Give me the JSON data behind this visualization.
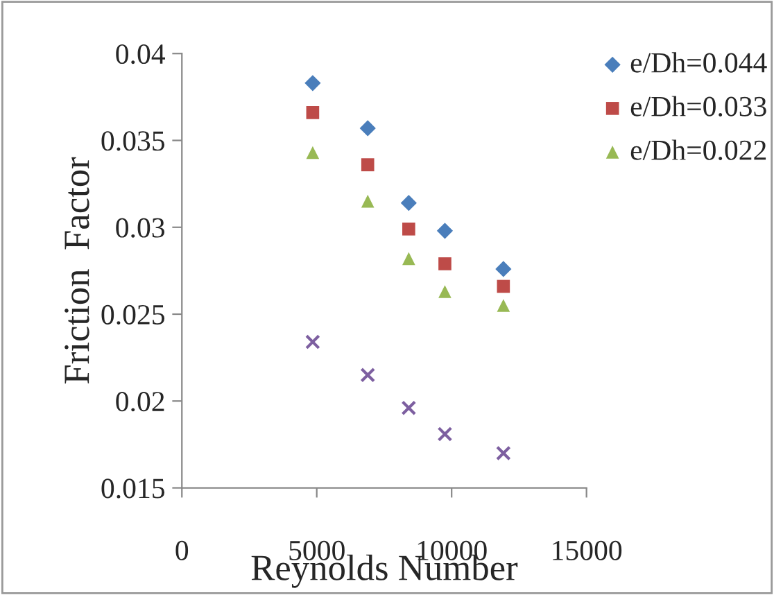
{
  "chart_data": {
    "type": "scatter",
    "xlabel": "Reynolds Number",
    "ylabel": "Friction  Factor",
    "x": [
      4850,
      6890,
      8410,
      9750,
      11920
    ],
    "series": [
      {
        "name": "e/Dh=0.044",
        "color": "#4a7ebb",
        "marker": "diamond",
        "values": [
          0.0383,
          0.0357,
          0.0314,
          0.0298,
          0.0276
        ]
      },
      {
        "name": "e/Dh=0.033",
        "color": "#be4b48",
        "marker": "square",
        "values": [
          0.0366,
          0.0336,
          0.0299,
          0.0279,
          0.0266
        ]
      },
      {
        "name": "e/Dh=0.022",
        "color": "#98b954",
        "marker": "triangle",
        "values": [
          0.0343,
          0.0315,
          0.0282,
          0.0263,
          0.0255
        ]
      },
      {
        "color": "#7d5fa0",
        "marker": "cross",
        "values": [
          0.0234,
          0.0215,
          0.0196,
          0.0181,
          0.017
        ]
      }
    ],
    "xlim": [
      0,
      15000
    ],
    "xticks": [
      0,
      5000,
      10000,
      15000
    ],
    "ylim": [
      0.015,
      0.04
    ],
    "yticks": [
      {
        "value": 0.015,
        "label": "0.015"
      },
      {
        "value": 0.02,
        "label": "0.02"
      },
      {
        "value": 0.025,
        "label": "0.025"
      },
      {
        "value": 0.03,
        "label": "0.03"
      },
      {
        "value": 0.035,
        "label": "0.035"
      },
      {
        "value": 0.04,
        "label": "0.04"
      }
    ],
    "grid": false,
    "legend": "right"
  }
}
